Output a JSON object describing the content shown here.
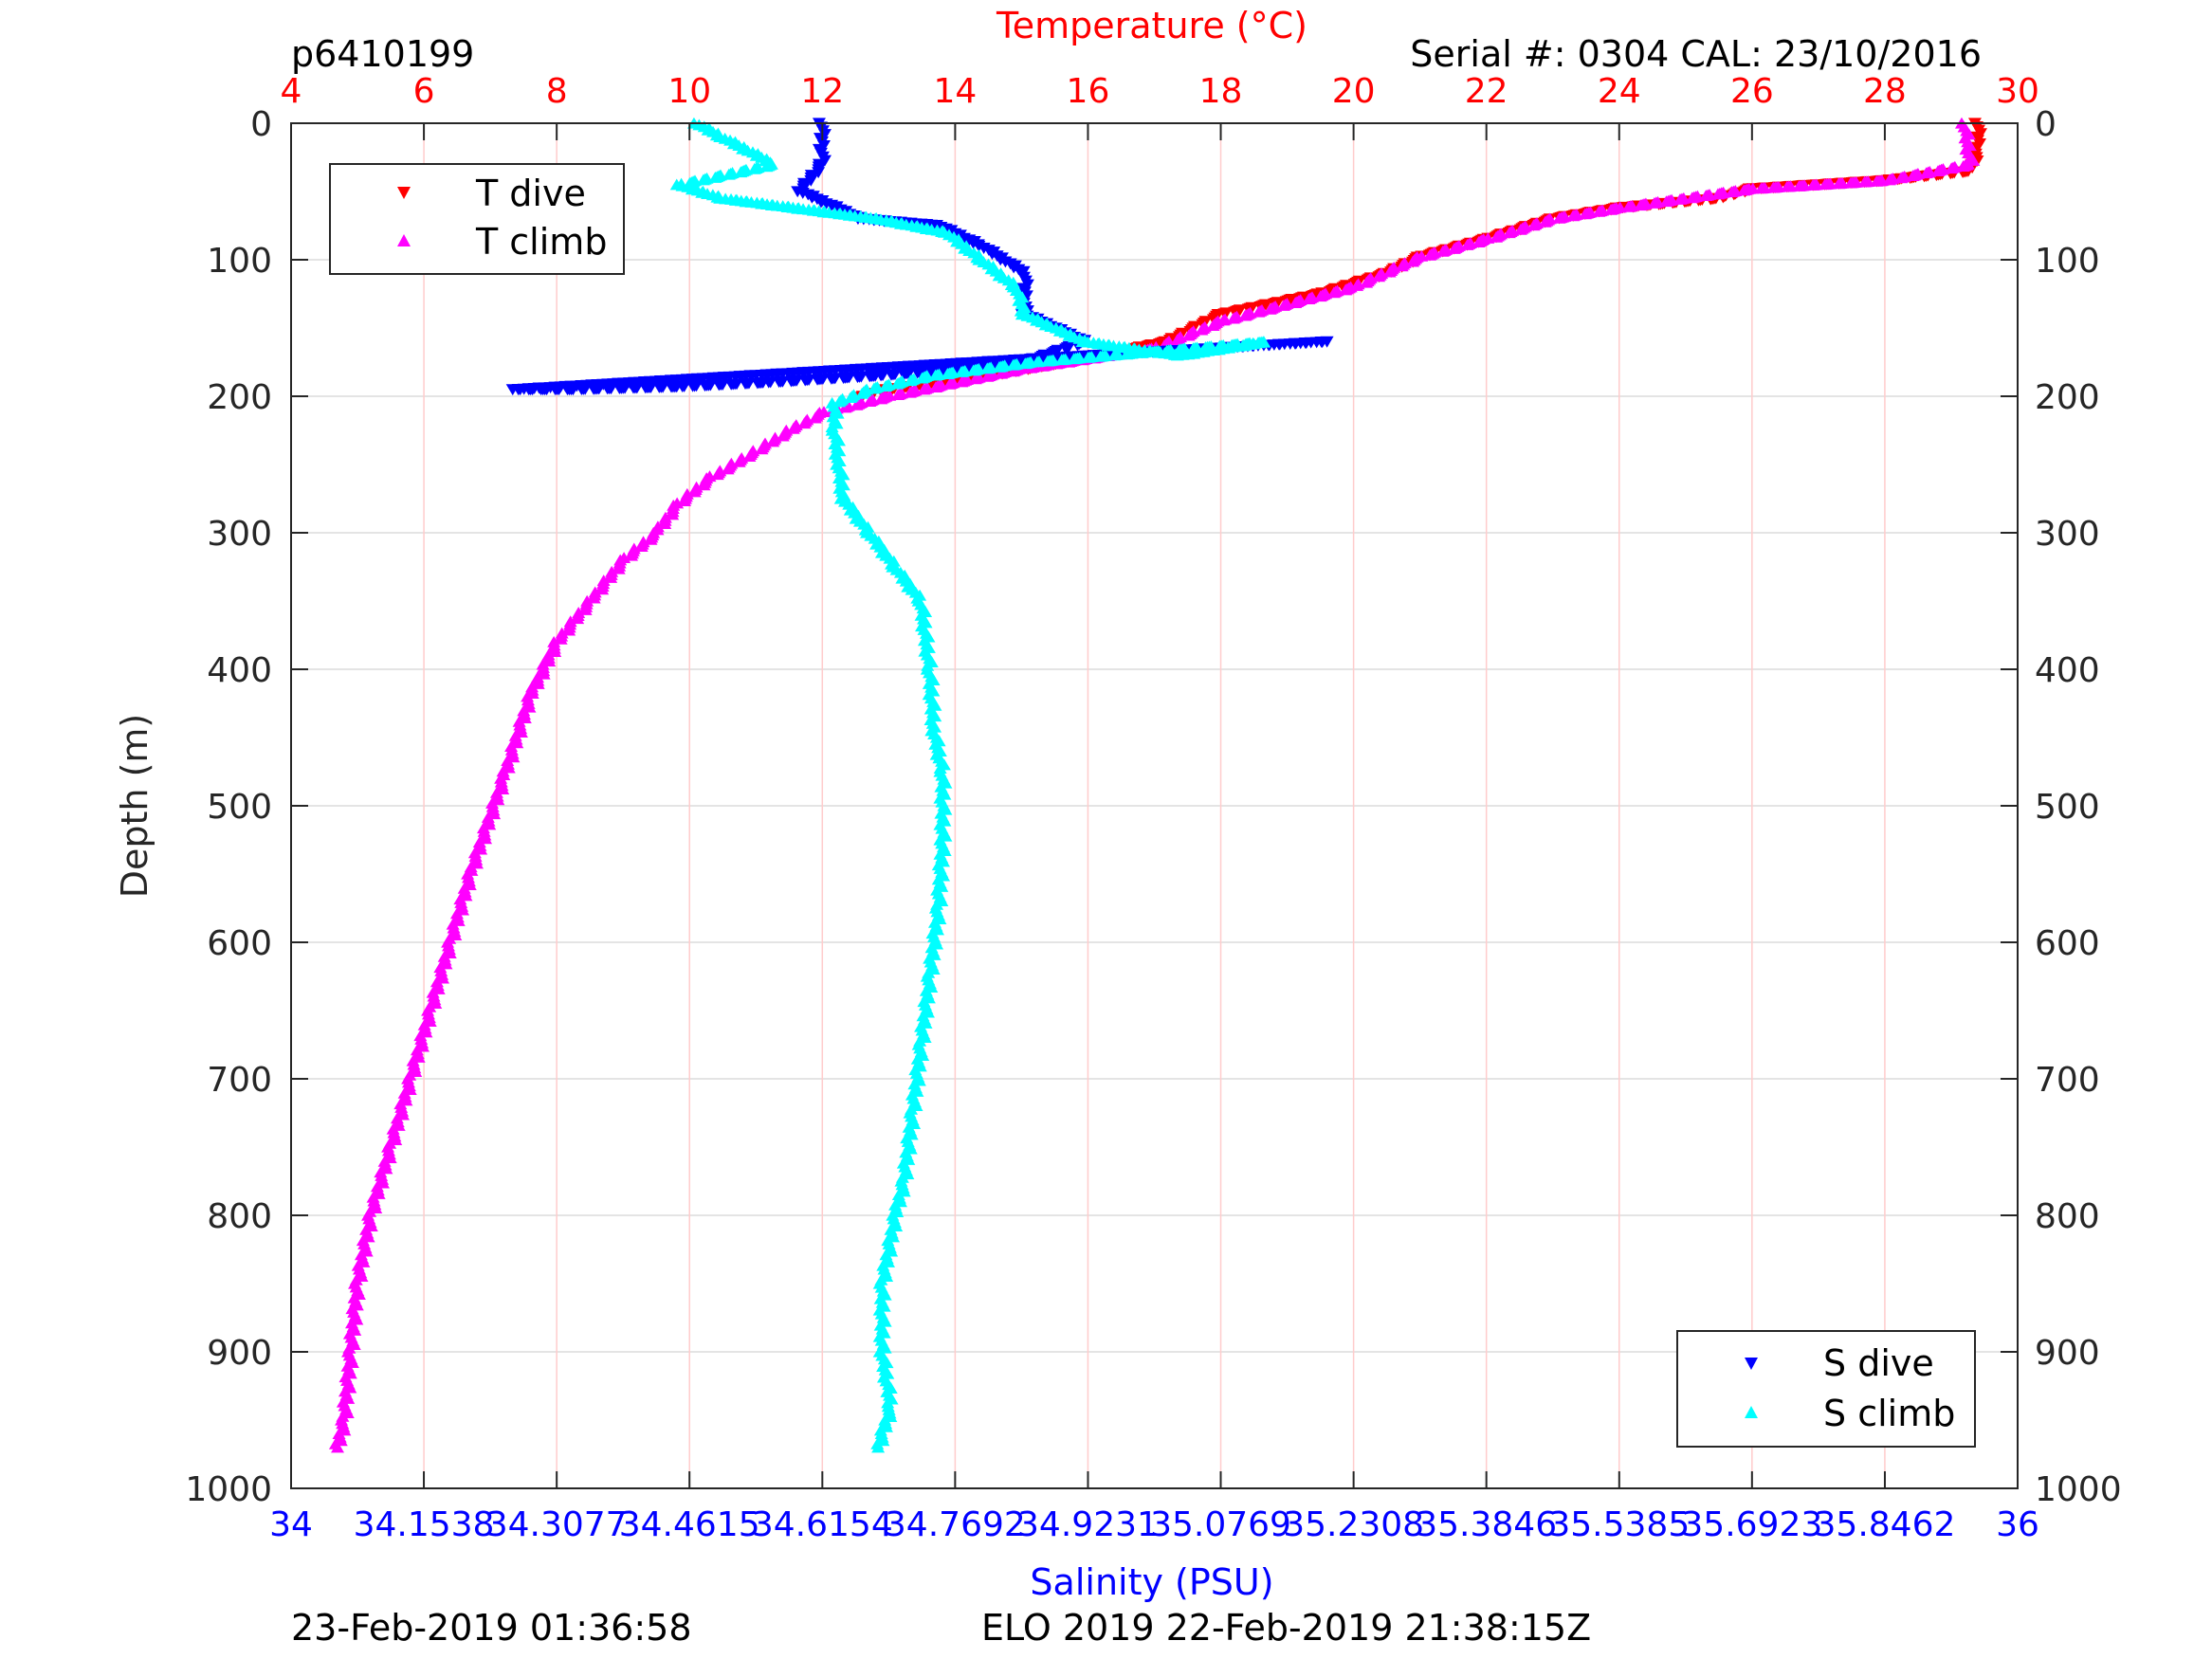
{
  "header": {
    "profile_id": "p6410199",
    "serial": "Serial #: 0304  CAL: 23/10/2016",
    "footer_left": "23-Feb-2019 01:36:58",
    "footer_center": "ELO 2019 22-Feb-2019 21:38:15Z"
  },
  "chart_data": {
    "type": "scatter",
    "grid": true,
    "y_axis": {
      "label": "Depth (m)",
      "range": [
        0,
        1000
      ],
      "reversed": true,
      "ticks": [
        "0",
        "100",
        "200",
        "300",
        "400",
        "500",
        "600",
        "700",
        "800",
        "900",
        "1000"
      ]
    },
    "top_axis": {
      "label": "Temperature (°C)",
      "range": [
        4,
        30
      ],
      "color": "#ff0000",
      "ticks": [
        "4",
        "6",
        "8",
        "10",
        "12",
        "14",
        "16",
        "18",
        "20",
        "22",
        "24",
        "26",
        "28",
        "30"
      ]
    },
    "bottom_axis": {
      "label": "Salinity (PSU)",
      "range": [
        34,
        36
      ],
      "color": "#0000ff",
      "ticks": [
        "34",
        "34.1538",
        "34.3077",
        "34.4615",
        "34.6154",
        "34.7692",
        "34.9231",
        "35.0769",
        "35.2308",
        "35.3846",
        "35.5385",
        "35.6923",
        "35.8462",
        "36"
      ]
    },
    "legends": [
      {
        "position": "top-left",
        "entries": [
          "T dive",
          "T climb"
        ]
      },
      {
        "position": "bottom-right",
        "entries": [
          "S dive",
          "S climb"
        ]
      }
    ],
    "series": [
      {
        "name": "T dive",
        "axis": "temperature",
        "color": "#ff0000",
        "marker": "triangle-down",
        "points": [
          [
            29.4,
            0
          ],
          [
            29.4,
            20
          ],
          [
            29.3,
            35
          ],
          [
            28,
            42
          ],
          [
            26,
            48
          ],
          [
            25.5,
            55
          ],
          [
            24,
            62
          ],
          [
            23,
            70
          ],
          [
            22,
            85
          ],
          [
            21,
            98
          ],
          [
            20.5,
            110
          ],
          [
            19.5,
            125
          ],
          [
            18,
            140
          ],
          [
            17.2,
            160
          ],
          [
            16,
            172
          ],
          [
            14.5,
            185
          ],
          [
            13,
            195
          ],
          [
            12.5,
            202
          ]
        ]
      },
      {
        "name": "T climb",
        "axis": "temperature",
        "color": "#ff00ff",
        "marker": "triangle-up",
        "points": [
          [
            29.2,
            0
          ],
          [
            29.3,
            30
          ],
          [
            28,
            42
          ],
          [
            26,
            48
          ],
          [
            24,
            62
          ],
          [
            23,
            70
          ],
          [
            22,
            85
          ],
          [
            21,
            98
          ],
          [
            20,
            120
          ],
          [
            18,
            145
          ],
          [
            17,
            165
          ],
          [
            15,
            180
          ],
          [
            13,
            200
          ],
          [
            12,
            212
          ],
          [
            11.5,
            225
          ],
          [
            11,
            240
          ],
          [
            10.3,
            260
          ],
          [
            9.8,
            280
          ],
          [
            9.5,
            300
          ],
          [
            9,
            320
          ],
          [
            8.5,
            350
          ],
          [
            8,
            380
          ],
          [
            7.6,
            420
          ],
          [
            7.2,
            480
          ],
          [
            6.7,
            550
          ],
          [
            6.4,
            600
          ],
          [
            6.1,
            650
          ],
          [
            5.8,
            700
          ],
          [
            5.5,
            750
          ],
          [
            5.2,
            800
          ],
          [
            5.0,
            850
          ],
          [
            4.9,
            900
          ],
          [
            4.8,
            950
          ],
          [
            4.7,
            970
          ]
        ]
      },
      {
        "name": "S dive",
        "axis": "salinity",
        "color": "#0000ff",
        "marker": "triangle-down",
        "points": [
          [
            34.615,
            0
          ],
          [
            34.615,
            30
          ],
          [
            34.59,
            50
          ],
          [
            34.66,
            70
          ],
          [
            34.75,
            75
          ],
          [
            34.8,
            90
          ],
          [
            34.85,
            110
          ],
          [
            34.85,
            140
          ],
          [
            34.92,
            160
          ],
          [
            34.85,
            175
          ],
          [
            34.78,
            180
          ],
          [
            34.68,
            185
          ],
          [
            34.55,
            190
          ],
          [
            34.45,
            193
          ],
          [
            34.33,
            195
          ],
          [
            34.26,
            195
          ],
          [
            35.2,
            160
          ]
        ]
      },
      {
        "name": "S climb",
        "axis": "salinity",
        "color": "#00ffff",
        "marker": "triangle-up",
        "points": [
          [
            34.47,
            0
          ],
          [
            34.5,
            10
          ],
          [
            34.56,
            30
          ],
          [
            34.45,
            45
          ],
          [
            34.5,
            55
          ],
          [
            34.68,
            70
          ],
          [
            34.76,
            80
          ],
          [
            34.8,
            100
          ],
          [
            34.84,
            120
          ],
          [
            34.85,
            140
          ],
          [
            34.92,
            160
          ],
          [
            35.03,
            170
          ],
          [
            35.13,
            160
          ],
          [
            34.86,
            175
          ],
          [
            34.74,
            185
          ],
          [
            34.67,
            195
          ],
          [
            34.63,
            205
          ],
          [
            34.63,
            225
          ],
          [
            34.635,
            250
          ],
          [
            34.64,
            275
          ],
          [
            34.67,
            300
          ],
          [
            34.7,
            325
          ],
          [
            34.73,
            350
          ],
          [
            34.74,
            400
          ],
          [
            34.745,
            445
          ],
          [
            34.755,
            475
          ],
          [
            34.755,
            525
          ],
          [
            34.75,
            575
          ],
          [
            34.74,
            625
          ],
          [
            34.73,
            675
          ],
          [
            34.72,
            725
          ],
          [
            34.71,
            775
          ],
          [
            34.7,
            800
          ],
          [
            34.685,
            850
          ],
          [
            34.685,
            900
          ],
          [
            34.695,
            940
          ],
          [
            34.68,
            970
          ]
        ]
      }
    ]
  }
}
